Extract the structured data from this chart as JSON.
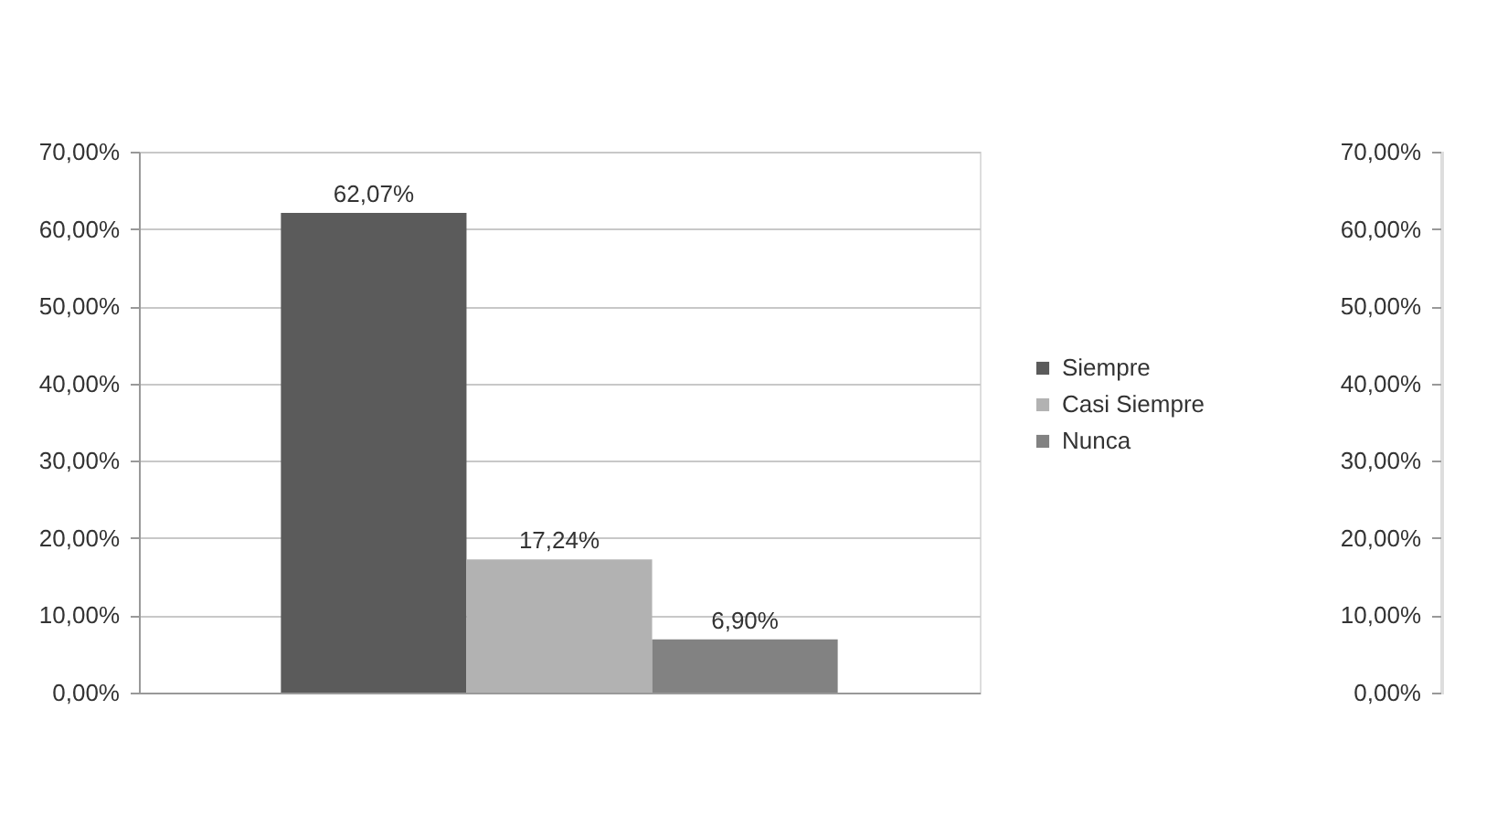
{
  "chart_data": {
    "type": "bar",
    "categories": [
      null
    ],
    "series": [
      {
        "name": "Siempre",
        "color": "#5b5b5b",
        "values": [
          62.07
        ],
        "value_labels": [
          "62,07%"
        ]
      },
      {
        "name": "Casi Siempre",
        "color": "#b2b2b2",
        "values": [
          17.24
        ],
        "value_labels": [
          "17,24%"
        ]
      },
      {
        "name": "Nunca",
        "color": "#828282",
        "values": [
          6.9
        ],
        "value_labels": [
          "6,90%"
        ]
      }
    ],
    "ylim": [
      0,
      70
    ],
    "yticks": [
      {
        "value": 0,
        "label": "0,00%"
      },
      {
        "value": 10,
        "label": "10,00%"
      },
      {
        "value": 20,
        "label": "20,00%"
      },
      {
        "value": 30,
        "label": "30,00%"
      },
      {
        "value": 40,
        "label": "40,00%"
      },
      {
        "value": 50,
        "label": "50,00%"
      },
      {
        "value": 60,
        "label": "60,00%"
      },
      {
        "value": 70,
        "label": "70,00%"
      }
    ],
    "y2lim": [
      0,
      70
    ],
    "y2ticks": [
      {
        "value": 0,
        "label": "0,00%"
      },
      {
        "value": 10,
        "label": "10,00%"
      },
      {
        "value": 20,
        "label": "20,00%"
      },
      {
        "value": 30,
        "label": "30,00%"
      },
      {
        "value": 40,
        "label": "40,00%"
      },
      {
        "value": 50,
        "label": "50,00%"
      },
      {
        "value": 60,
        "label": "60,00%"
      },
      {
        "value": 70,
        "label": "70,00%"
      }
    ],
    "grid": "y",
    "legend": "right",
    "tick_labels": "y"
  }
}
